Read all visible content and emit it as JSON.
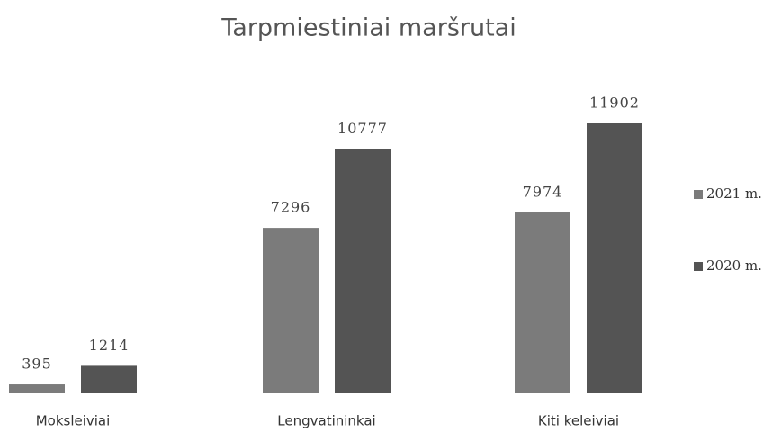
{
  "chart_data": {
    "type": "bar",
    "title": "Tarpmiestiniai maršrutai",
    "categories": [
      "Moksleiviai",
      "Lengvatininkai",
      "Kiti keleiviai"
    ],
    "series": [
      {
        "name": "2021 m.",
        "color": "#7b7b7b",
        "values": [
          395,
          7296,
          7974
        ]
      },
      {
        "name": "2020 m.",
        "color": "#545454",
        "values": [
          1214,
          10777,
          11902
        ]
      }
    ],
    "legend": "right"
  }
}
